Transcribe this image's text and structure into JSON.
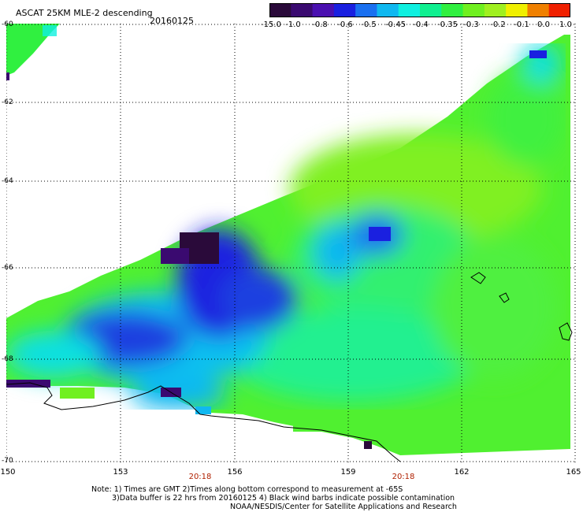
{
  "header": {
    "title": "ASCAT 25KM MLE-2 descending",
    "date": "20160125"
  },
  "colorbar": {
    "labels": [
      "-15.0",
      "-1.0",
      "-0.8",
      "-0.6",
      "-0.5",
      "-0.45",
      "-0.4",
      "-0.35",
      "-0.3",
      "-0.2",
      "-0.1",
      "0.0",
      "1.0"
    ],
    "colors": [
      "#2a0a3a",
      "#3a0a70",
      "#4a10b0",
      "#1a20e0",
      "#1a70f0",
      "#10b8f0",
      "#10f0e0",
      "#10f090",
      "#30f040",
      "#70f020",
      "#a0f020",
      "#f0f000",
      "#f08000",
      "#f02000"
    ]
  },
  "axes": {
    "lat_labels": [
      "-60",
      "-62",
      "-64",
      "-66",
      "-68",
      "-70"
    ],
    "lon_labels": [
      "150",
      "153",
      "156",
      "159",
      "162",
      "165"
    ],
    "time_labels": [
      "20:18",
      "20:18"
    ]
  },
  "notes": {
    "line1": "Note: 1) Times are GMT 2)Times along bottom correspond to measurement at -65S",
    "line2": "3)Data buffer is 22 hrs from 20160125 4) Black wind barbs indicate possible contamination",
    "line3": "NOAA/NESDIS/Center for Satellite Applications and Research"
  }
}
